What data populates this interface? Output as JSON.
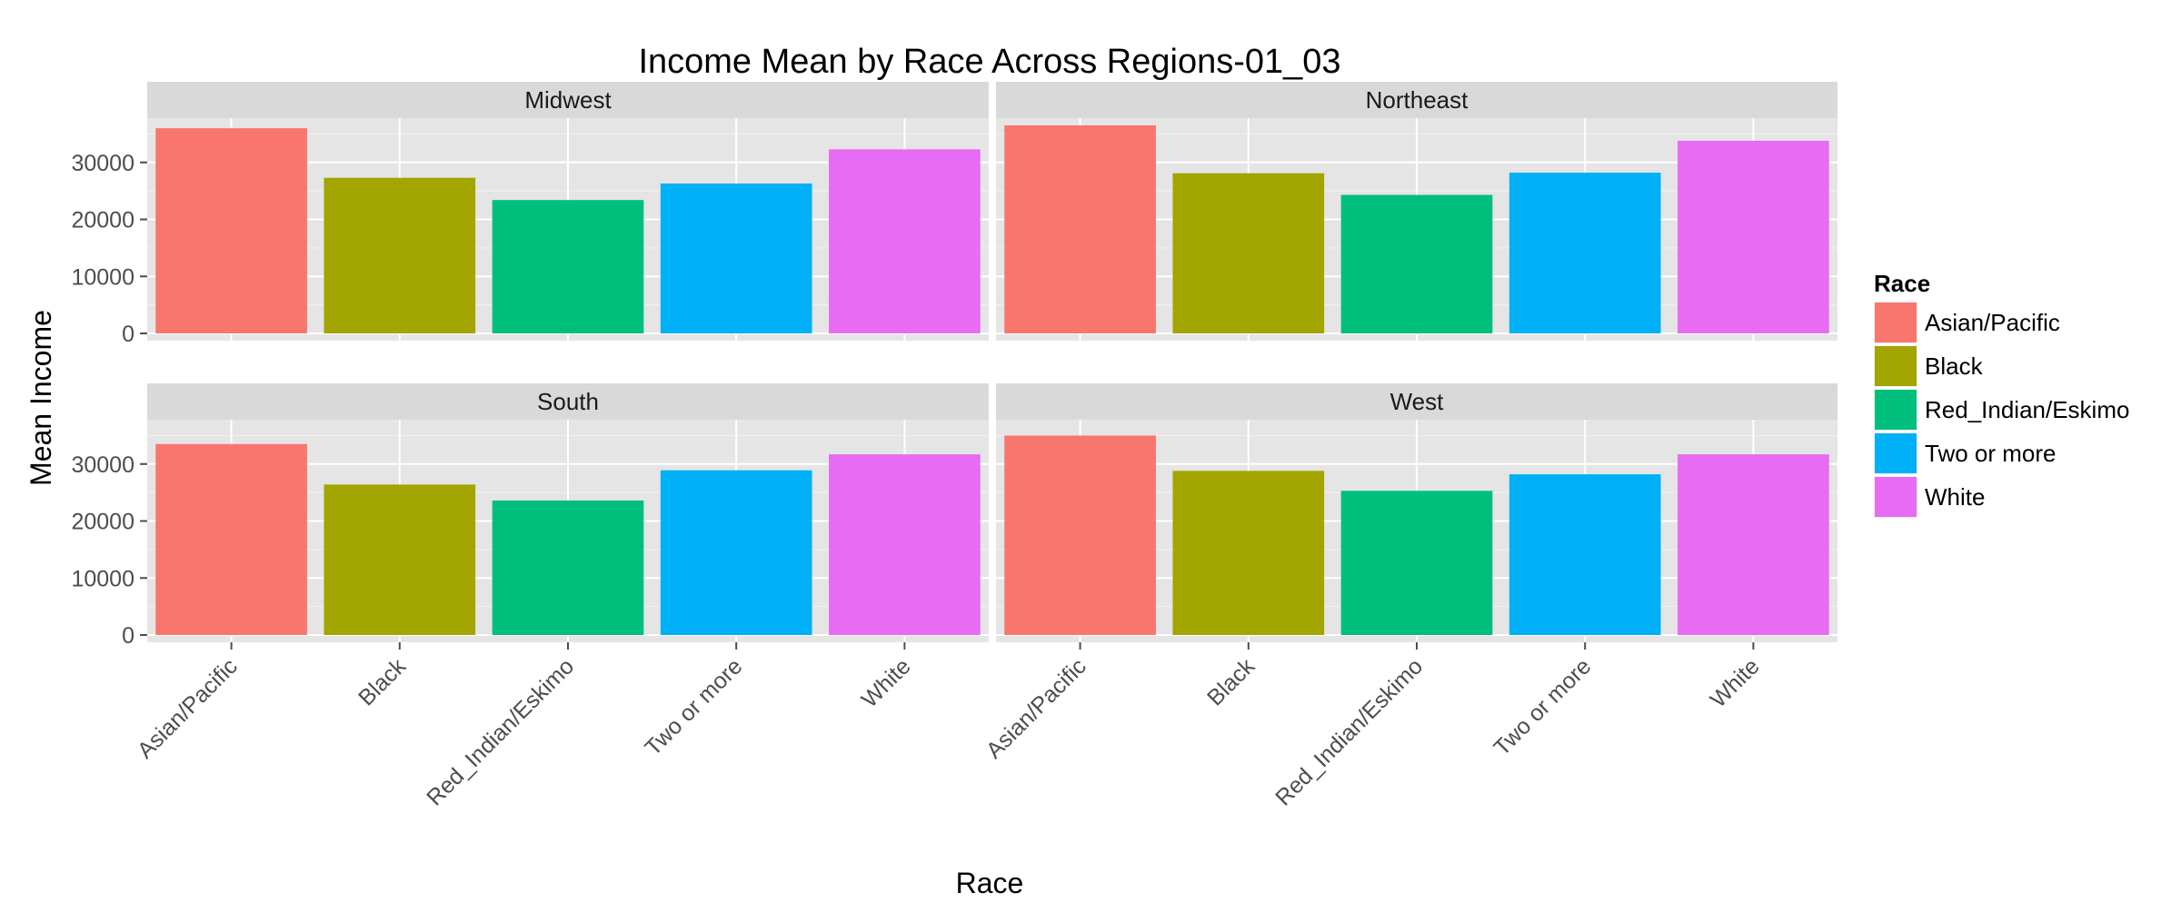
{
  "chart_data": {
    "type": "bar",
    "title": "Income Mean by Race Across Regions-01_03",
    "xlabel": "Race",
    "ylabel": "Mean Income",
    "categories": [
      "Asian/Pacific",
      "Black",
      "Red_Indian/Eskimo",
      "Two or more",
      "White"
    ],
    "colors": [
      "#F8766D",
      "#A3A500",
      "#00BF7D",
      "#00B0F6",
      "#E76BF3"
    ],
    "ylim": [
      0,
      36500
    ],
    "yticks": [
      0,
      10000,
      20000,
      30000
    ],
    "grid": true,
    "legend": {
      "title": "Race",
      "placement": "right",
      "entries": [
        "Asian/Pacific",
        "Black",
        "Red_Indian/Eskimo",
        "Two or more",
        "White"
      ]
    },
    "facets": [
      {
        "name": "Midwest",
        "values": [
          36000,
          27300,
          23400,
          26300,
          32300
        ]
      },
      {
        "name": "Northeast",
        "values": [
          36500,
          28100,
          24300,
          28200,
          33800
        ]
      },
      {
        "name": "South",
        "values": [
          33500,
          26400,
          23600,
          28900,
          31700
        ]
      },
      {
        "name": "West",
        "values": [
          35000,
          28800,
          25300,
          28200,
          31700
        ]
      }
    ]
  }
}
